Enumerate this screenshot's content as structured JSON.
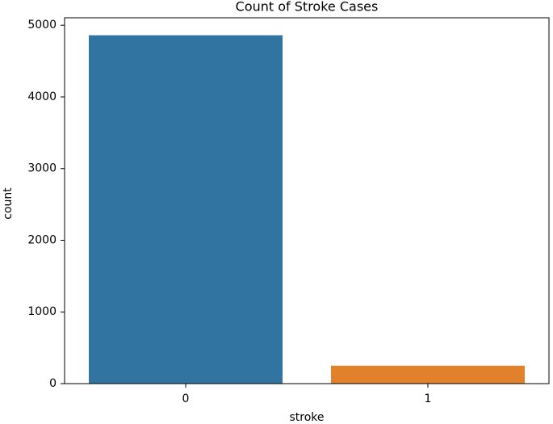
{
  "chart_data": {
    "type": "bar",
    "title": "Count of Stroke Cases",
    "x_label": "stroke",
    "y_label": "count",
    "categories": [
      "0",
      "1"
    ],
    "values": [
      4860,
      250
    ],
    "colors": [
      "#3274a1",
      "#e1812c"
    ],
    "ylim": [
      0,
      5104
    ],
    "yticks": [
      0,
      1000,
      2000,
      3000,
      4000,
      5000
    ],
    "grid": false
  }
}
